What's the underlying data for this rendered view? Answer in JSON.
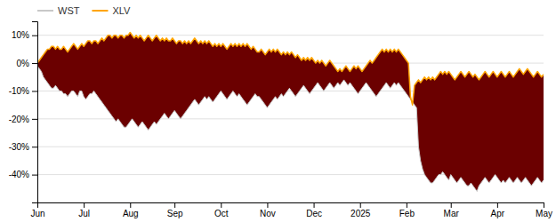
{
  "chart_data": {
    "type": "area",
    "categories": [
      "Jun",
      null,
      null,
      null,
      null,
      null,
      null,
      null,
      null,
      null,
      null,
      null,
      null,
      null,
      null,
      null,
      null,
      null,
      null,
      null,
      null,
      null,
      null,
      "Jul",
      null,
      null,
      null,
      null,
      null,
      null,
      null,
      null,
      null,
      null,
      null,
      null,
      null,
      null,
      null,
      null,
      null,
      null,
      null,
      null,
      null,
      null,
      "Aug",
      null,
      null,
      null,
      null,
      null,
      null,
      null,
      null,
      null,
      null,
      null,
      null,
      null,
      null,
      null,
      null,
      null,
      null,
      null,
      null,
      null,
      "Sep",
      null,
      null,
      null,
      null,
      null,
      null,
      null,
      null,
      null,
      null,
      null,
      null,
      null,
      null,
      null,
      null,
      null,
      null,
      null,
      null,
      null,
      null,
      "Oct",
      null,
      null,
      null,
      null,
      null,
      null,
      null,
      null,
      null,
      null,
      null,
      null,
      null,
      null,
      null,
      null,
      null,
      null,
      null,
      null,
      null,
      null,
      "Nov",
      null,
      null,
      null,
      null,
      null,
      null,
      null,
      null,
      null,
      null,
      null,
      null,
      null,
      null,
      null,
      null,
      null,
      null,
      null,
      null,
      null,
      null,
      "Dec",
      null,
      null,
      null,
      null,
      null,
      null,
      null,
      null,
      null,
      null,
      null,
      null,
      null,
      null,
      null,
      null,
      null,
      null,
      null,
      null,
      null,
      null,
      "2025",
      null,
      null,
      null,
      null,
      null,
      null,
      null,
      null,
      null,
      null,
      null,
      null,
      null,
      null,
      null,
      null,
      null,
      null,
      null,
      null,
      null,
      null,
      "Feb",
      null,
      null,
      null,
      null,
      null,
      null,
      null,
      null,
      null,
      null,
      null,
      null,
      null,
      null,
      null,
      null,
      null,
      null,
      null,
      null,
      null,
      "Mar",
      null,
      null,
      null,
      null,
      null,
      null,
      null,
      null,
      null,
      null,
      null,
      null,
      null,
      null,
      null,
      null,
      null,
      null,
      null,
      null,
      null,
      null,
      "Apr",
      null,
      null,
      null,
      null,
      null,
      null,
      null,
      null,
      null,
      null,
      null,
      null,
      null,
      null,
      null,
      null,
      null,
      null,
      null,
      null,
      null,
      null,
      "May"
    ],
    "series": [
      {
        "name": "WST",
        "color": "#c8c8c8",
        "values": [
          -1,
          -2,
          -3,
          -5,
          -6,
          -7,
          -8,
          -9,
          -9,
          -8,
          -9,
          -10,
          -10,
          -11,
          -11,
          -12,
          -11,
          -10,
          -10,
          -11,
          -12,
          -10,
          -10,
          -12,
          -13,
          -12,
          -11,
          -11,
          -10,
          -11,
          -12,
          -13,
          -14,
          -15,
          -16,
          -17,
          -18,
          -19,
          -20,
          -21,
          -20,
          -21,
          -22,
          -23,
          -23,
          -22,
          -21,
          -20,
          -21,
          -22,
          -23,
          -22,
          -21,
          -22,
          -23,
          -24,
          -23,
          -22,
          -21,
          -22,
          -21,
          -20,
          -19,
          -18,
          -19,
          -20,
          -19,
          -18,
          -17,
          -18,
          -19,
          -20,
          -19,
          -18,
          -17,
          -16,
          -15,
          -14,
          -13,
          -14,
          -15,
          -14,
          -13,
          -12,
          -13,
          -12,
          -13,
          -14,
          -13,
          -12,
          -11,
          -10,
          -11,
          -12,
          -13,
          -12,
          -11,
          -10,
          -11,
          -12,
          -11,
          -12,
          -13,
          -14,
          -15,
          -14,
          -13,
          -12,
          -11,
          -12,
          -12,
          -13,
          -14,
          -15,
          -16,
          -15,
          -14,
          -13,
          -12,
          -13,
          -12,
          -11,
          -12,
          -11,
          -10,
          -9,
          -10,
          -11,
          -12,
          -11,
          -10,
          -9,
          -8,
          -9,
          -10,
          -11,
          -10,
          -9,
          -8,
          -7,
          -8,
          -9,
          -10,
          -9,
          -8,
          -7,
          -8,
          -9,
          -8,
          -7,
          -8,
          -7,
          -6,
          -7,
          -8,
          -7,
          -8,
          -9,
          -10,
          -11,
          -10,
          -9,
          -8,
          -7,
          -8,
          -9,
          -10,
          -11,
          -12,
          -11,
          -10,
          -9,
          -8,
          -7,
          -8,
          -9,
          -8,
          -7,
          -8,
          -7,
          -8,
          -9,
          -10,
          -11,
          -12,
          -13,
          -14,
          -15,
          -16,
          -30,
          -35,
          -38,
          -40,
          -41,
          -42,
          -43,
          -43,
          -42,
          -41,
          -40,
          -40,
          -39,
          -40,
          -41,
          -42,
          -40,
          -41,
          -42,
          -43,
          -42,
          -41,
          -42,
          -43,
          -44,
          -44,
          -43,
          -44,
          -45,
          -46,
          -44,
          -43,
          -42,
          -41,
          -42,
          -43,
          -42,
          -41,
          -40,
          -41,
          -42,
          -43,
          -42,
          -43,
          -42,
          -41,
          -42,
          -43,
          -42,
          -41,
          -42,
          -43,
          -42,
          -41,
          -42,
          -43,
          -44,
          -43,
          -42,
          -41,
          -42,
          -43,
          -42
        ]
      },
      {
        "name": "XLV",
        "color": "#ffa500",
        "values": [
          0,
          1,
          2,
          3,
          4,
          5,
          5,
          6,
          6,
          5,
          6,
          5,
          5,
          6,
          5,
          4,
          5,
          6,
          7,
          6,
          5,
          6,
          7,
          6,
          7,
          8,
          8,
          7,
          8,
          8,
          7,
          8,
          9,
          8,
          9,
          10,
          10,
          9,
          10,
          10,
          9,
          10,
          10,
          9,
          10,
          10,
          11,
          10,
          9,
          10,
          9,
          10,
          9,
          8,
          9,
          10,
          9,
          8,
          9,
          10,
          9,
          8,
          9,
          8,
          9,
          8,
          8,
          9,
          8,
          7,
          8,
          8,
          7,
          8,
          7,
          8,
          7,
          8,
          9,
          8,
          7,
          8,
          7,
          8,
          7,
          8,
          7,
          6,
          7,
          6,
          7,
          6,
          7,
          6,
          5,
          6,
          7,
          6,
          7,
          6,
          7,
          6,
          7,
          6,
          7,
          6,
          5,
          6,
          5,
          4,
          4,
          5,
          4,
          3,
          4,
          5,
          4,
          5,
          4,
          5,
          4,
          3,
          4,
          3,
          4,
          3,
          4,
          3,
          2,
          3,
          2,
          1,
          2,
          1,
          2,
          1,
          2,
          1,
          0,
          1,
          0,
          1,
          0,
          -1,
          0,
          1,
          0,
          -1,
          -2,
          -3,
          -2,
          -3,
          -2,
          -1,
          -2,
          -3,
          -2,
          -1,
          -2,
          -1,
          -2,
          -3,
          -2,
          -1,
          0,
          1,
          0,
          1,
          2,
          3,
          4,
          5,
          4,
          5,
          4,
          5,
          4,
          5,
          4,
          5,
          4,
          3,
          2,
          1,
          0,
          -12,
          -15,
          -8,
          -7,
          -6,
          -7,
          -6,
          -5,
          -6,
          -5,
          -6,
          -5,
          -6,
          -5,
          -4,
          -3,
          -4,
          -3,
          -4,
          -3,
          -4,
          -5,
          -6,
          -5,
          -4,
          -3,
          -4,
          -5,
          -4,
          -3,
          -4,
          -5,
          -4,
          -5,
          -6,
          -5,
          -4,
          -3,
          -4,
          -5,
          -4,
          -3,
          -4,
          -5,
          -4,
          -3,
          -4,
          -5,
          -4,
          -3,
          -4,
          -5,
          -4,
          -3,
          -2,
          -3,
          -4,
          -3,
          -2,
          -3,
          -4,
          -5,
          -4,
          -3,
          -4,
          -5,
          -4
        ]
      }
    ],
    "color": "#6b0000",
    "ylim": [
      -50,
      15
    ],
    "yticks": [
      {
        "value": 10,
        "label": "10%"
      },
      {
        "value": 0,
        "label": "0%"
      },
      {
        "value": -10,
        "label": "-10%"
      },
      {
        "value": -20,
        "label": "-20%"
      },
      {
        "value": -30,
        "label": "-30%"
      },
      {
        "value": -40,
        "label": "-40%"
      }
    ],
    "grid": true,
    "legend": "upper left"
  }
}
